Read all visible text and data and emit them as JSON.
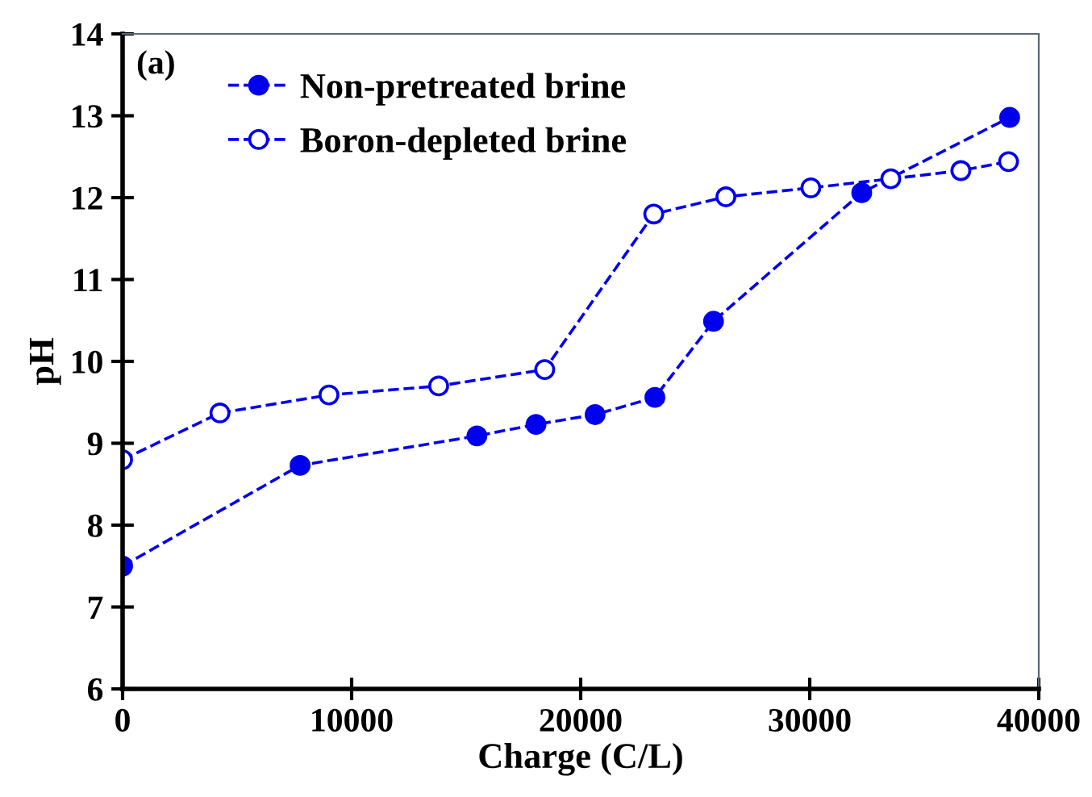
{
  "chart_data": {
    "type": "line",
    "xlabel": "Charge (C/L)",
    "ylabel": "pH",
    "annotations": [
      "(a)"
    ],
    "xlim": [
      0,
      40000
    ],
    "xticks": [
      0,
      10000,
      20000,
      30000,
      40000
    ],
    "ylim": [
      6,
      14
    ],
    "yticks": [
      6,
      7,
      8,
      9,
      10,
      11,
      12,
      13,
      14
    ],
    "grid": false,
    "legend": "top left",
    "line_style": "dashed",
    "series": [
      {
        "name": "Non-pretreated brine",
        "color": "#0000ee",
        "marker": "circle",
        "x": [
          0,
          7750,
          15470,
          18050,
          20630,
          23240,
          25800,
          32270,
          38730
        ],
        "values": [
          7.5,
          8.73,
          9.09,
          9.23,
          9.35,
          9.56,
          10.49,
          12.06,
          12.98
        ]
      },
      {
        "name": "Boron-depleted brine",
        "color": "#0000ee",
        "marker": "circle",
        "x": [
          0,
          4250,
          9010,
          13800,
          18430,
          23190,
          26340,
          30050,
          33540,
          36600,
          38680
        ],
        "values": [
          8.8,
          9.37,
          9.59,
          9.7,
          9.9,
          11.8,
          12.01,
          12.12,
          12.23,
          12.33,
          12.44
        ]
      }
    ]
  }
}
